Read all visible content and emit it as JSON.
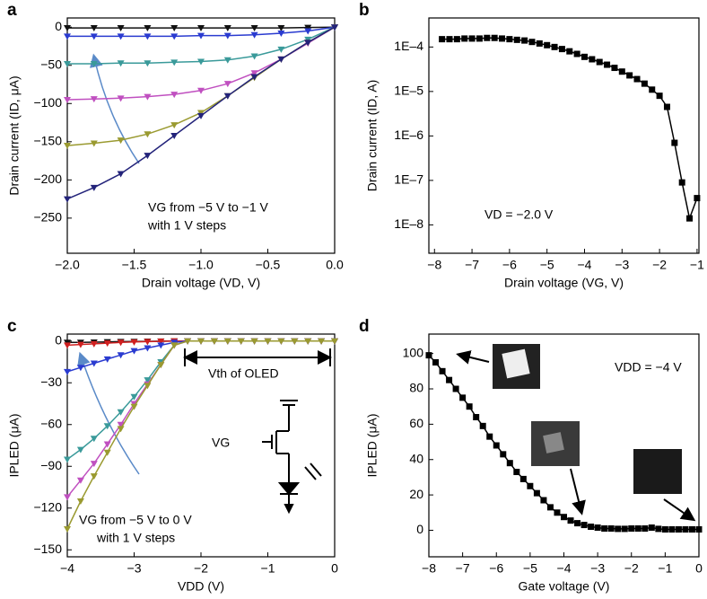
{
  "chart_data": [
    {
      "type": "line",
      "label": "a",
      "xlabel": "Drain voltage (VD, V)",
      "ylabel": "Drain current (ID, μA)",
      "marker": "triangle",
      "xlim": [
        -2,
        0
      ],
      "ylim": [
        -296,
        12
      ],
      "xticks": [
        {
          "value": -2,
          "label": "−2.0"
        },
        {
          "value": -1.5,
          "label": "−1.5"
        },
        {
          "value": -1,
          "label": "−1.0"
        },
        {
          "value": -0.5,
          "label": "−0.5"
        },
        {
          "value": 0,
          "label": "0.0"
        }
      ],
      "yticks": [
        0,
        {
          "value": -50,
          "label": "−50"
        },
        {
          "value": -100,
          "label": "−100"
        },
        {
          "value": -150,
          "label": "−150"
        },
        {
          "value": -200,
          "label": "−200"
        },
        {
          "value": -250,
          "label": "−250"
        }
      ],
      "x": [
        -2,
        -1.8,
        -1.6,
        -1.4,
        -1.2,
        -1,
        -0.8,
        -0.6,
        -0.4,
        -0.2,
        0
      ],
      "series": [
        {
          "color": "#111111",
          "values": [
            -1,
            -1,
            -1,
            -1,
            -1,
            -1,
            -1,
            -1,
            -1,
            -0.5,
            0
          ]
        },
        {
          "color": "#2a3bd0",
          "values": [
            -12,
            -12,
            -12,
            -12,
            -12,
            -11,
            -11,
            -10,
            -8,
            -5,
            0
          ]
        },
        {
          "color": "#3a9a9a",
          "values": [
            -48,
            -48,
            -47,
            -47,
            -46,
            -45,
            -43,
            -38,
            -29,
            -16,
            0
          ]
        },
        {
          "color": "#c050c0",
          "values": [
            -95,
            -94,
            -93,
            -91,
            -88,
            -83,
            -74,
            -60,
            -42,
            -21,
            0
          ]
        },
        {
          "color": "#9a9a30",
          "values": [
            -155,
            -152,
            -148,
            -140,
            -128,
            -112,
            -90,
            -66,
            -42,
            -20,
            0
          ]
        },
        {
          "color": "#23237a",
          "values": [
            -225,
            -210,
            -192,
            -168,
            -142,
            -116,
            -90,
            -65,
            -42,
            -20,
            0
          ]
        }
      ],
      "annotations": [
        "VG from −5 V to −1 V",
        "with 1 V steps"
      ]
    },
    {
      "type": "line",
      "label": "b",
      "xlabel": "Drain voltage (VG, V)",
      "ylabel": "Drain current (ID, A)",
      "marker": "square",
      "log_y": true,
      "xlim": [
        -8.15,
        -0.95
      ],
      "ylim": [
        2.3e-09,
        0.00045
      ],
      "xticks": [
        {
          "value": -8,
          "label": "−8"
        },
        {
          "value": -7,
          "label": "−7"
        },
        {
          "value": -6,
          "label": "−6"
        },
        {
          "value": -5,
          "label": "−5"
        },
        {
          "value": -4,
          "label": "−4"
        },
        {
          "value": -3,
          "label": "−3"
        },
        {
          "value": -2,
          "label": "−2"
        },
        {
          "value": -1,
          "label": "−1"
        }
      ],
      "yticks": [
        {
          "value": 1e-08,
          "label": "1E–8"
        },
        {
          "value": 1e-07,
          "label": "1E–7"
        },
        {
          "value": 1e-06,
          "label": "1E–6"
        },
        {
          "value": 1e-05,
          "label": "1E–5"
        },
        {
          "value": 0.0001,
          "label": "1E–4"
        }
      ],
      "x": [
        -7.8,
        -7.6,
        -7.4,
        -7.2,
        -7,
        -6.8,
        -6.6,
        -6.4,
        -6.2,
        -6,
        -5.8,
        -5.6,
        -5.4,
        -5.2,
        -5,
        -4.8,
        -4.6,
        -4.4,
        -4.2,
        -4,
        -3.8,
        -3.6,
        -3.4,
        -3.2,
        -3,
        -2.8,
        -2.6,
        -2.4,
        -2.2,
        -2,
        -1.8,
        -1.6,
        -1.4,
        -1.2,
        -1
      ],
      "series": [
        {
          "color": "#000000",
          "values": [
            0.00015,
            0.00015,
            0.00015,
            0.000155,
            0.000155,
            0.000155,
            0.00016,
            0.00016,
            0.000155,
            0.00015,
            0.000145,
            0.00014,
            0.00013,
            0.00012,
            0.00011,
            0.0001,
            9e-05,
            8e-05,
            7e-05,
            6e-05,
            5.3e-05,
            4.6e-05,
            4e-05,
            3.4e-05,
            2.8e-05,
            2.3e-05,
            1.9e-05,
            1.5e-05,
            1.1e-05,
            8e-06,
            4.5e-06,
            7e-07,
            9e-08,
            1.4e-08,
            4e-08
          ]
        }
      ],
      "annotations": [
        "VD = −2.0 V"
      ]
    },
    {
      "type": "line",
      "label": "c",
      "xlabel": "VDD (V)",
      "ylabel": "IPLED (μA)",
      "marker": "triangle",
      "xlim": [
        -4,
        0
      ],
      "ylim": [
        -155,
        5
      ],
      "xticks": [
        {
          "value": -4,
          "label": "−4"
        },
        {
          "value": -3,
          "label": "−3"
        },
        {
          "value": -2,
          "label": "−2"
        },
        {
          "value": -1,
          "label": "−1"
        },
        0
      ],
      "yticks": [
        0,
        {
          "value": -30,
          "label": "−30"
        },
        {
          "value": -60,
          "label": "−60"
        },
        {
          "value": -90,
          "label": "−90"
        },
        {
          "value": -120,
          "label": "−120"
        },
        {
          "value": -150,
          "label": "−150"
        }
      ],
      "x": [
        -4,
        -3.8,
        -3.6,
        -3.4,
        -3.2,
        -3,
        -2.8,
        -2.6,
        -2.4,
        -2.2,
        -2,
        -1.8,
        -1.6,
        -1.4,
        -1.2,
        -1,
        -0.8,
        -0.6,
        -0.4,
        -0.2,
        0
      ],
      "series": [
        {
          "color": "#111111",
          "values": [
            -1,
            -1,
            -0.8,
            -0.6,
            -0.4,
            -0.3,
            -0.2,
            -0.1,
            0,
            0,
            0,
            0,
            0,
            0,
            0,
            0,
            0,
            0,
            0,
            0,
            0
          ]
        },
        {
          "color": "#d02020",
          "values": [
            -3,
            -2.5,
            -2,
            -1.5,
            -1,
            -0.7,
            -0.4,
            -0.2,
            0,
            0,
            0,
            0,
            0,
            0,
            0,
            0,
            0,
            0,
            0,
            0,
            0
          ]
        },
        {
          "color": "#2a3bd0",
          "values": [
            -22,
            -19,
            -16,
            -13,
            -10,
            -7,
            -5,
            -3,
            -1,
            0,
            0,
            0,
            0,
            0,
            0,
            0,
            0,
            0,
            0,
            0,
            0
          ]
        },
        {
          "color": "#3a9a9a",
          "values": [
            -85,
            -78,
            -70,
            -61,
            -51,
            -40,
            -28,
            -15,
            -3,
            0,
            0,
            0,
            0,
            0,
            0,
            0,
            0,
            0,
            0,
            0,
            0
          ]
        },
        {
          "color": "#c050c0",
          "values": [
            -112,
            -100,
            -88,
            -74,
            -60,
            -45,
            -31,
            -17,
            -3,
            0,
            0,
            0,
            0,
            0,
            0,
            0,
            0,
            0,
            0,
            0,
            0
          ]
        },
        {
          "color": "#9a9a30",
          "values": [
            -135,
            -115,
            -97,
            -80,
            -63,
            -47,
            -32,
            -17,
            -3,
            0,
            0,
            0,
            0,
            0,
            0,
            0,
            0,
            0,
            0,
            0,
            0
          ]
        }
      ],
      "annotations": [
        "Vth of OLED",
        "VG from −5 V to 0 V",
        "with 1 V steps",
        "VG"
      ]
    },
    {
      "type": "line",
      "label": "d",
      "xlabel": "Gate voltage (V)",
      "ylabel": "IPLED (μA)",
      "marker": "square",
      "xlim": [
        -8,
        0
      ],
      "ylim": [
        -15,
        111
      ],
      "xticks": [
        {
          "value": -8,
          "label": "−8"
        },
        {
          "value": -7,
          "label": "−7"
        },
        {
          "value": -6,
          "label": "−6"
        },
        {
          "value": -5,
          "label": "−5"
        },
        {
          "value": -4,
          "label": "−4"
        },
        {
          "value": -3,
          "label": "−3"
        },
        {
          "value": -2,
          "label": "−2"
        },
        {
          "value": -1,
          "label": "−1"
        },
        0
      ],
      "yticks": [
        0,
        20,
        40,
        60,
        80,
        100
      ],
      "x": [
        -8,
        -7.8,
        -7.6,
        -7.4,
        -7.2,
        -7,
        -6.8,
        -6.6,
        -6.4,
        -6.2,
        -6,
        -5.8,
        -5.6,
        -5.4,
        -5.2,
        -5,
        -4.8,
        -4.6,
        -4.4,
        -4.2,
        -4,
        -3.8,
        -3.6,
        -3.4,
        -3.2,
        -3,
        -2.8,
        -2.6,
        -2.4,
        -2.2,
        -2,
        -1.8,
        -1.6,
        -1.4,
        -1.2,
        -1,
        -0.8,
        -0.6,
        -0.4,
        -0.2,
        0
      ],
      "series": [
        {
          "color": "#000000",
          "values": [
            99,
            95,
            90,
            85,
            80,
            75,
            70,
            64,
            59,
            53,
            48,
            43,
            38,
            33,
            29,
            25,
            21,
            17,
            13,
            10,
            7.5,
            5.5,
            4,
            3,
            2,
            1.5,
            1,
            1,
            0.8,
            0.8,
            1,
            1,
            1,
            1.5,
            0.8,
            0.5,
            0.5,
            0.5,
            0.5,
            0.5,
            0.5
          ]
        }
      ],
      "annotations": [
        "VDD = −4 V"
      ]
    }
  ]
}
